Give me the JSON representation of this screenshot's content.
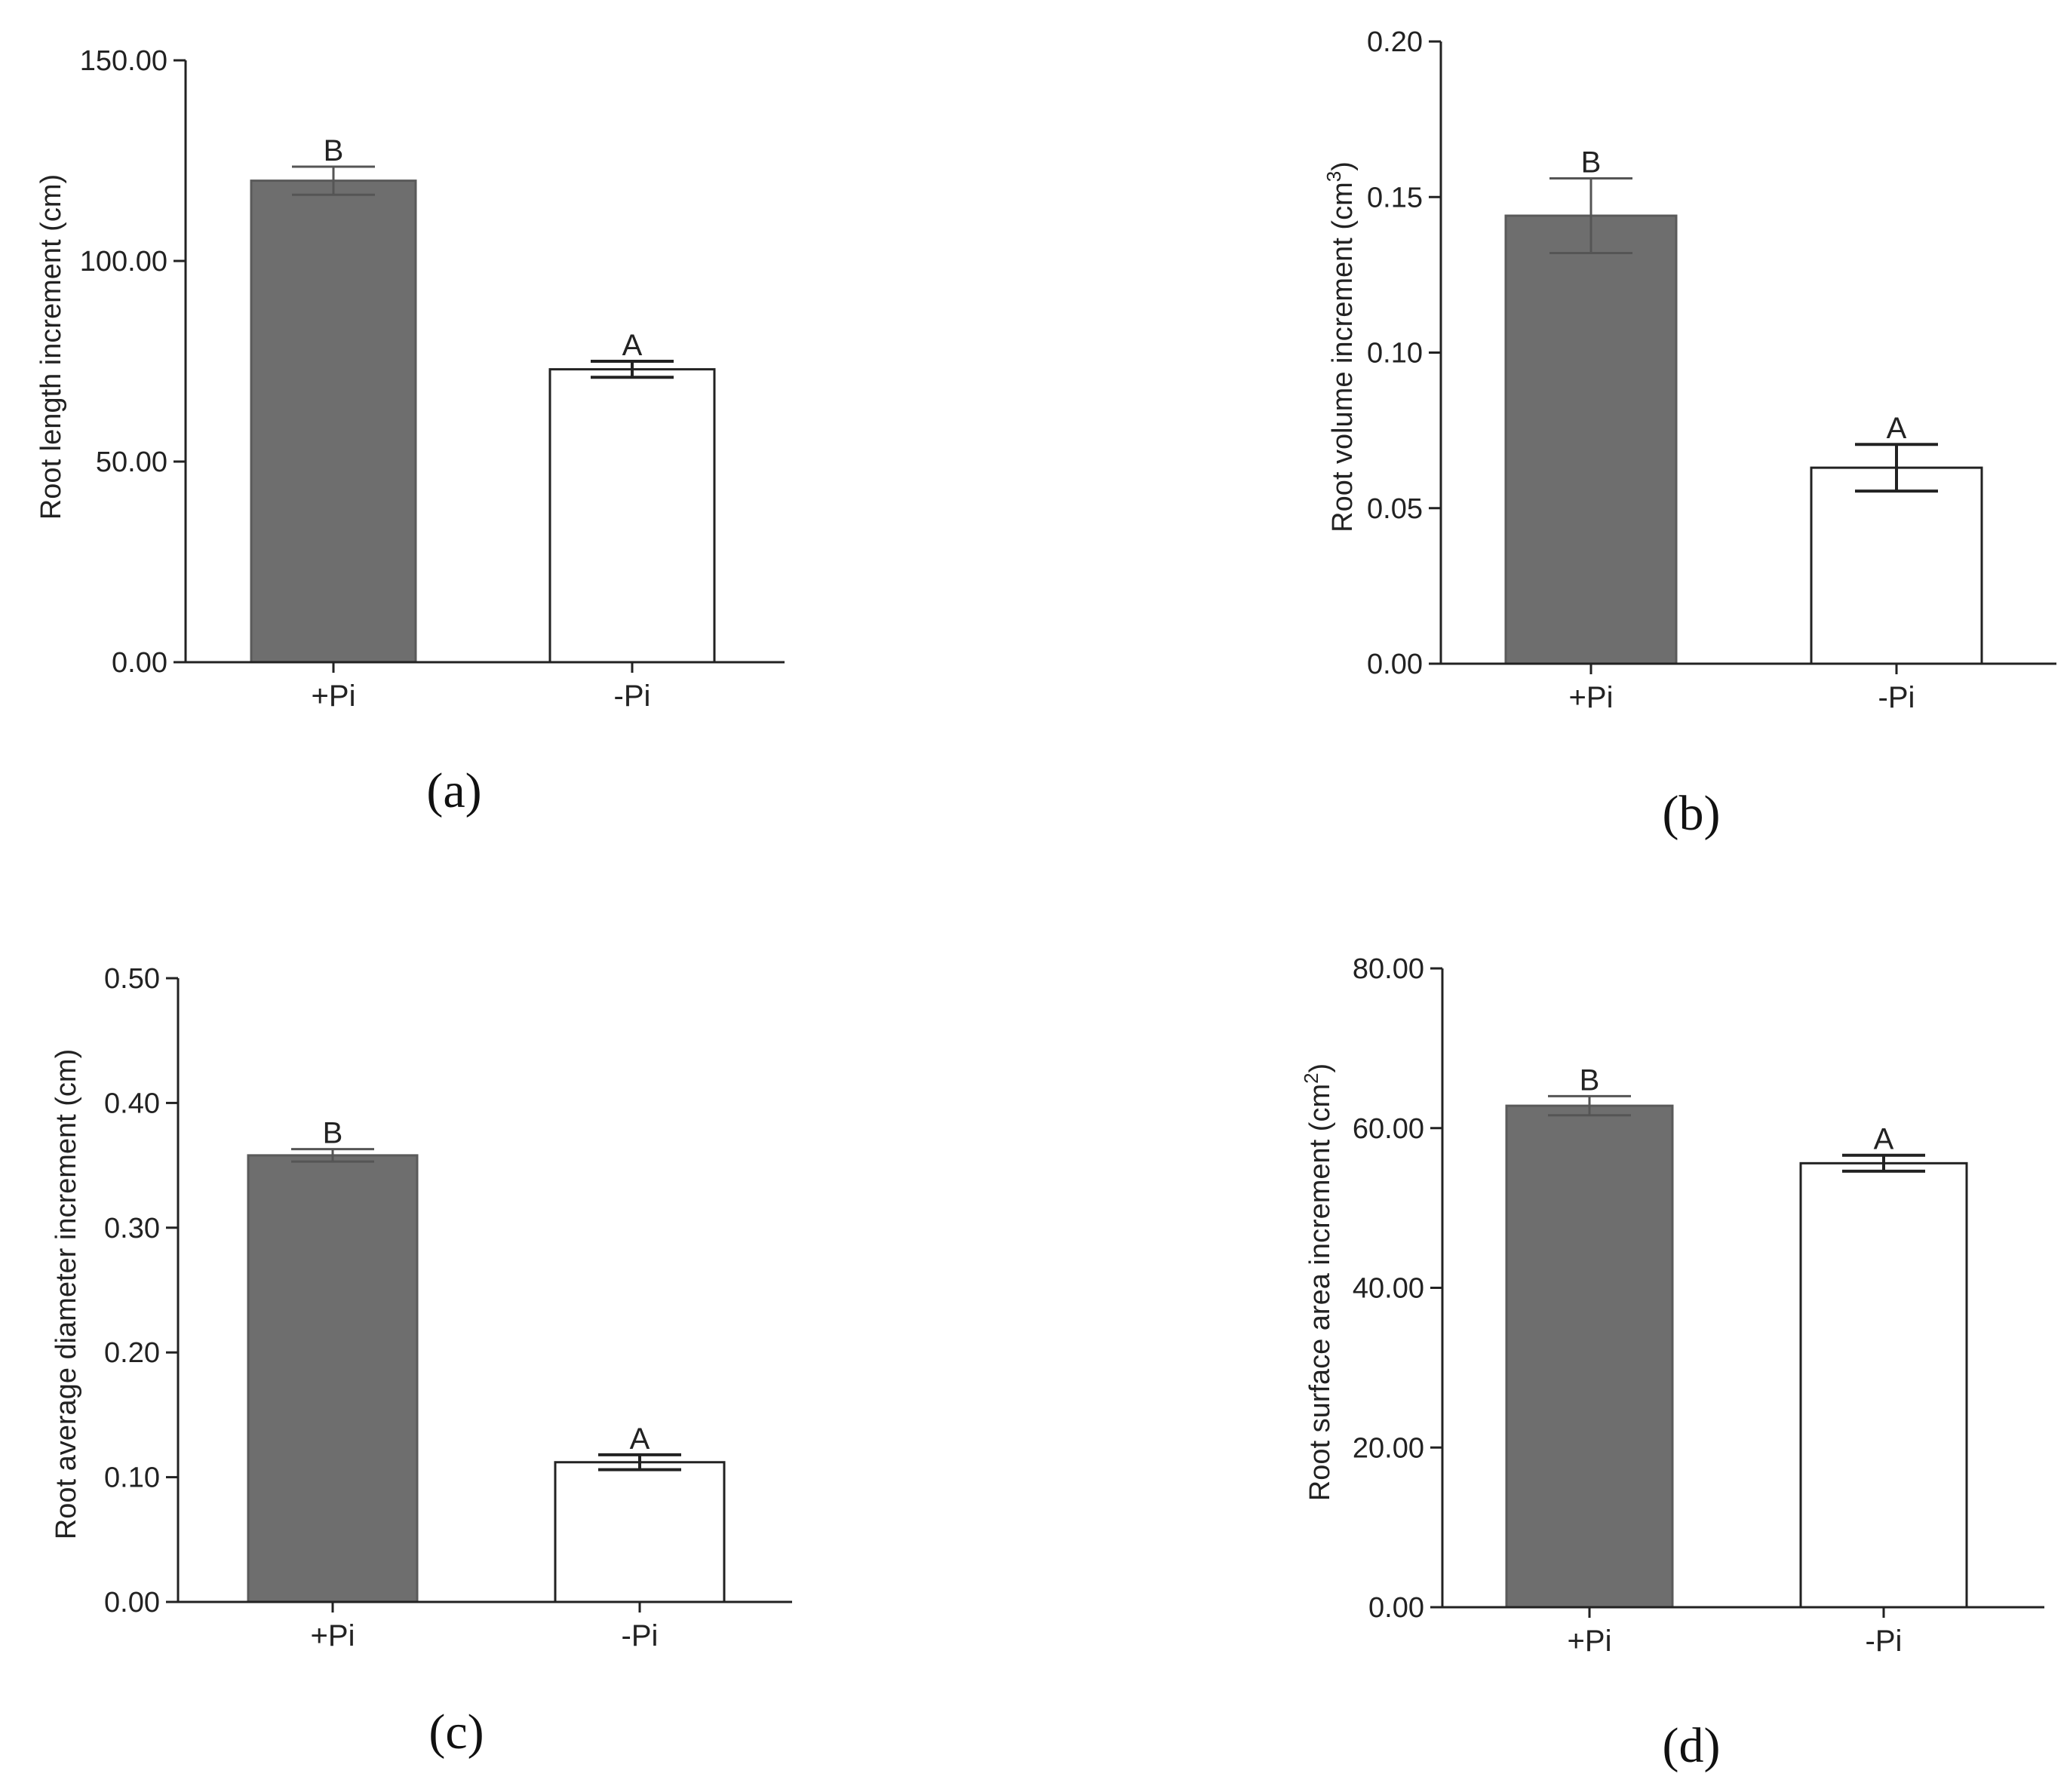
{
  "colors": {
    "filled_bar": "#6e6e6e",
    "open_bar": "#ffffff",
    "axis": "#222222",
    "error_bar": "#555555"
  },
  "chart_data": [
    {
      "panel": "(a)",
      "type": "bar",
      "categories": [
        "+Pi",
        "-Pi"
      ],
      "values": [
        120.0,
        73.0
      ],
      "errors": [
        3.5,
        2.0
      ],
      "significance": [
        "B",
        "A"
      ],
      "ylabel": "Root length increment (cm)",
      "ylim": [
        0,
        150
      ],
      "yticks": [
        0,
        50,
        100,
        150
      ],
      "ytick_labels": [
        "0.00",
        "50.00",
        "100.00",
        "150.00"
      ]
    },
    {
      "panel": "(b)",
      "type": "bar",
      "categories": [
        "+Pi",
        "-Pi"
      ],
      "values": [
        0.144,
        0.063
      ],
      "errors": [
        0.012,
        0.0075
      ],
      "significance": [
        "B",
        "A"
      ],
      "ylabel": "Root volume increment (cm",
      "ylabel_sup": "3",
      "ylabel_end": ")",
      "ylim": [
        0,
        0.2
      ],
      "yticks": [
        0,
        0.05,
        0.1,
        0.15,
        0.2
      ],
      "ytick_labels": [
        "0.00",
        "0.05",
        "0.10",
        "0.15",
        "0.20"
      ]
    },
    {
      "panel": "(c)",
      "type": "bar",
      "categories": [
        "+Pi",
        "-Pi"
      ],
      "values": [
        0.358,
        0.112
      ],
      "errors": [
        0.005,
        0.006
      ],
      "significance": [
        "B",
        "A"
      ],
      "ylabel": "Root average diameter increment (cm)",
      "ylim": [
        0,
        0.5
      ],
      "yticks": [
        0,
        0.1,
        0.2,
        0.3,
        0.4,
        0.5
      ],
      "ytick_labels": [
        "0.00",
        "0.10",
        "0.20",
        "0.30",
        "0.40",
        "0.50"
      ]
    },
    {
      "panel": "(d)",
      "type": "bar",
      "categories": [
        "+Pi",
        "-Pi"
      ],
      "values": [
        62.8,
        55.6
      ],
      "errors": [
        1.2,
        1.0
      ],
      "significance": [
        "B",
        "A"
      ],
      "ylabel": "Root surface area increment (cm",
      "ylabel_sup": "2",
      "ylabel_end": ")",
      "ylim": [
        0,
        80
      ],
      "yticks": [
        0,
        20,
        40,
        60,
        80
      ],
      "ytick_labels": [
        "0.00",
        "20.00",
        "40.00",
        "60.00",
        "80.00"
      ]
    }
  ]
}
